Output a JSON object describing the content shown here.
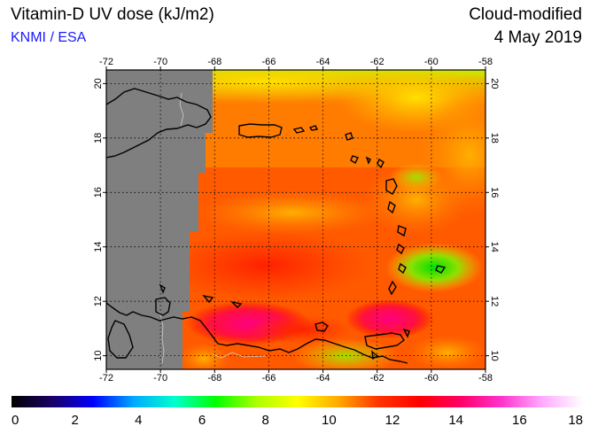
{
  "header": {
    "title": "Vitamin-D UV dose (kJ/m2)",
    "credit": "KNMI / ESA",
    "mode": "Cloud-modified",
    "date": "4 May 2019"
  },
  "map": {
    "lon_range": [
      -72,
      -58
    ],
    "lat_range": [
      9.5,
      20.5
    ],
    "lon_ticks": [
      "-72",
      "-70",
      "-68",
      "-66",
      "-64",
      "-62",
      "-60",
      "-58"
    ],
    "lat_ticks": [
      "10",
      "12",
      "14",
      "16",
      "18",
      "20"
    ],
    "no_data_color": "#7f7f7f",
    "coastline_color": "#000000",
    "border_color": "#cccccc"
  },
  "colorbar": {
    "min": 0,
    "max": 18,
    "tick_labels": [
      "0",
      "2",
      "4",
      "6",
      "8",
      "10",
      "12",
      "14",
      "16",
      "18"
    ],
    "colors": [
      "#000000",
      "#1a0066",
      "#0000ff",
      "#00aaff",
      "#00ffcc",
      "#00ff00",
      "#aaff00",
      "#ffff00",
      "#ffaa00",
      "#ff3300",
      "#ff0000",
      "#ff0066",
      "#ff33cc",
      "#ffaaff",
      "#ffffff"
    ]
  }
}
